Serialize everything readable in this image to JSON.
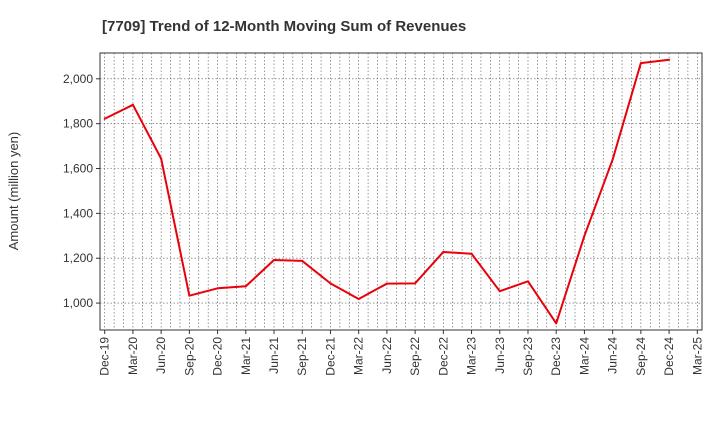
{
  "chart_data": {
    "type": "line",
    "title": "[7709]  Trend of 12-Month Moving Sum of Revenues",
    "xlabel": "",
    "ylabel": "Amount (million yen)",
    "ylim": [
      880,
      2115
    ],
    "yticks": [
      1000,
      1200,
      1400,
      1600,
      1800,
      2000
    ],
    "ytick_labels": [
      "1,000",
      "1,200",
      "1,400",
      "1,600",
      "1,800",
      "2,000"
    ],
    "grid": true,
    "x": [
      "Dec-19",
      "Jan-20",
      "Feb-20",
      "Mar-20",
      "Apr-20",
      "May-20",
      "Jun-20",
      "Jul-20",
      "Aug-20",
      "Sep-20",
      "Oct-20",
      "Nov-20",
      "Dec-20",
      "Jan-21",
      "Feb-21",
      "Mar-21",
      "Apr-21",
      "May-21",
      "Jun-21",
      "Jul-21",
      "Aug-21",
      "Sep-21",
      "Oct-21",
      "Nov-21",
      "Dec-21",
      "Jan-22",
      "Feb-22",
      "Mar-22",
      "Apr-22",
      "May-22",
      "Jun-22",
      "Jul-22",
      "Aug-22",
      "Sep-22",
      "Oct-22",
      "Nov-22",
      "Dec-22",
      "Jan-23",
      "Feb-23",
      "Mar-23",
      "Apr-23",
      "May-23",
      "Jun-23",
      "Jul-23",
      "Aug-23",
      "Sep-23",
      "Oct-23",
      "Nov-23",
      "Dec-23",
      "Jan-24",
      "Feb-24",
      "Mar-24",
      "Apr-24",
      "May-24",
      "Jun-24",
      "Jul-24",
      "Aug-24",
      "Sep-24",
      "Oct-24",
      "Nov-24",
      "Dec-24",
      "Jan-25",
      "Feb-25",
      "Mar-25"
    ],
    "xtick_labels": [
      "Dec-19",
      "Mar-20",
      "Jun-20",
      "Sep-20",
      "Dec-20",
      "Mar-21",
      "Jun-21",
      "Sep-21",
      "Dec-21",
      "Mar-22",
      "Jun-22",
      "Sep-22",
      "Dec-22",
      "Mar-23",
      "Jun-23",
      "Sep-23",
      "Dec-23",
      "Mar-24",
      "Jun-24",
      "Sep-24",
      "Dec-24",
      "Mar-25"
    ],
    "series": [
      {
        "name": "",
        "color": "#e8000b",
        "points": [
          [
            "Dec-19",
            1822
          ],
          [
            "Mar-20",
            1884
          ],
          [
            "Jun-20",
            1644
          ],
          [
            "Sep-20",
            1033
          ],
          [
            "Dec-20",
            1066
          ],
          [
            "Mar-21",
            1075
          ],
          [
            "Jun-21",
            1192
          ],
          [
            "Sep-21",
            1188
          ],
          [
            "Dec-21",
            1088
          ],
          [
            "Mar-22",
            1018
          ],
          [
            "Jun-22",
            1087
          ],
          [
            "Sep-22",
            1088
          ],
          [
            "Dec-22",
            1228
          ],
          [
            "Mar-23",
            1220
          ],
          [
            "Jun-23",
            1053
          ],
          [
            "Sep-23",
            1097
          ],
          [
            "Dec-23",
            910
          ],
          [
            "Mar-24",
            1300
          ],
          [
            "Jun-24",
            1640
          ],
          [
            "Sep-24",
            2070
          ],
          [
            "Dec-24",
            2085
          ]
        ]
      }
    ]
  }
}
